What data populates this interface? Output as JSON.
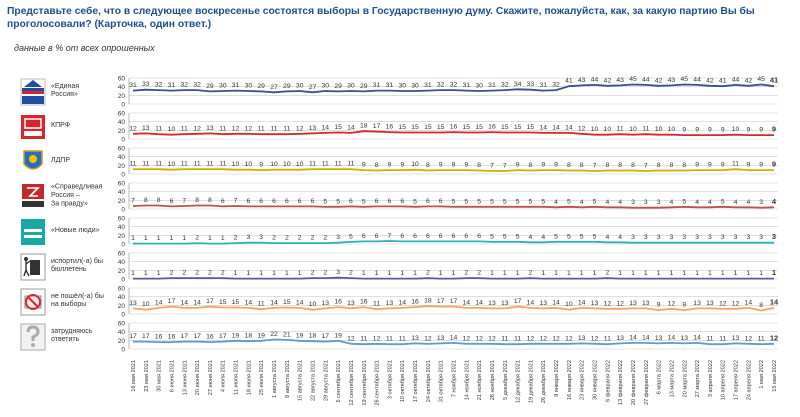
{
  "title": "Представьте себе, что в следующее воскресенье состоятся выборы в Государственную думу. Скажите, пожалуйста, как, за какую партию Вы бы проголосовали? (Карточка, один ответ.)",
  "subtitle": "данные в % от всех опрошенных",
  "chart_data": {
    "type": "line",
    "x": [
      "16 мая 2021",
      "23 мая 2021",
      "30 мая 2021",
      "6 июня 2021",
      "13 июня 2021",
      "20 июня 2021",
      "27 июня 2021",
      "4 июля 2021",
      "11 июля 2021",
      "18 июля 2021",
      "25 июля 2021",
      "1 августа 2021",
      "8 августа 2021",
      "15 августа 2021",
      "22 августа 2021",
      "29 августа 2021",
      "5 сентября 2021",
      "12 сентября 2021",
      "19 сентября 2021",
      "26 сентября 2021",
      "3 октября 2021",
      "10 октября 2021",
      "17 октября 2021",
      "24 октября 2021",
      "31 октября 2021",
      "7 ноября 2021",
      "14 ноября 2021",
      "21 ноября 2021",
      "28 ноября 2021",
      "5 декабря 2021",
      "12 декабря 2021",
      "19 декабря 2021",
      "26 декабря 2021",
      "9 января 2022",
      "16 января 2022",
      "23 января 2022",
      "30 января 2022",
      "6 февраля 2022",
      "13 февраля 2022",
      "20 февраля 2022",
      "27 февраля 2022",
      "6 марта 2022",
      "13 марта 2022",
      "20 марта 2022",
      "27 марта 2022",
      "3 апреля 2022",
      "10 апреля 2022",
      "17 апреля 2022",
      "24 апреля 2022",
      "1 мая 2022",
      "15 мая 2022"
    ],
    "ylim": [
      0,
      60
    ],
    "yticks": [
      0,
      20,
      40,
      60
    ],
    "series": [
      {
        "name": "«Единая Россия»",
        "color": "#3a4f8c",
        "icon": "united-russia-logo",
        "values": [
          31,
          33,
          32,
          31,
          32,
          32,
          29,
          30,
          31,
          30,
          29,
          27,
          29,
          30,
          27,
          30,
          29,
          30,
          29,
          31,
          31,
          30,
          30,
          31,
          32,
          32,
          31,
          30,
          31,
          32,
          34,
          33,
          31,
          32,
          41,
          43,
          44,
          42,
          43,
          45,
          44,
          42,
          43,
          45,
          44,
          42,
          41,
          44,
          42,
          45,
          41
        ]
      },
      {
        "name": "КПРФ",
        "color": "#d9262e",
        "icon": "kprf-logo",
        "values": [
          12,
          13,
          11,
          10,
          11,
          12,
          13,
          11,
          12,
          12,
          11,
          11,
          11,
          12,
          13,
          14,
          15,
          14,
          18,
          17,
          16,
          15,
          15,
          15,
          15,
          16,
          15,
          15,
          16,
          15,
          15,
          15,
          14,
          14,
          14,
          12,
          10,
          10,
          11,
          10,
          11,
          10,
          10,
          9,
          9,
          9,
          9,
          10,
          9,
          9,
          9
        ]
      },
      {
        "name": "ЛДПР",
        "color": "#c8b400",
        "icon": "ldpr-logo",
        "values": [
          11,
          11,
          11,
          10,
          11,
          11,
          11,
          11,
          10,
          10,
          9,
          10,
          10,
          10,
          11,
          11,
          11,
          11,
          9,
          8,
          9,
          9,
          10,
          8,
          9,
          9,
          9,
          8,
          7,
          7,
          9,
          8,
          9,
          9,
          8,
          8,
          7,
          8,
          8,
          8,
          7,
          8,
          8,
          8,
          9,
          9,
          9,
          11,
          9,
          9,
          9
        ]
      },
      {
        "name": "«Справедливая Россия – За правду»",
        "color": "#c0504d",
        "icon": "fair-russia-logo",
        "values": [
          7,
          8,
          8,
          6,
          7,
          8,
          8,
          6,
          7,
          6,
          6,
          6,
          6,
          6,
          6,
          5,
          5,
          6,
          5,
          6,
          6,
          6,
          5,
          6,
          6,
          5,
          5,
          5,
          5,
          5,
          5,
          5,
          5,
          4,
          5,
          4,
          5,
          4,
          4,
          3,
          3,
          3,
          4,
          5,
          4,
          4,
          5,
          4,
          4,
          3,
          4
        ]
      },
      {
        "name": "«Новые люди»",
        "color": "#2bb3b1",
        "icon": "new-people-logo",
        "values": [
          1,
          1,
          1,
          1,
          1,
          2,
          1,
          1,
          2,
          3,
          3,
          2,
          2,
          2,
          2,
          2,
          3,
          5,
          6,
          6,
          7,
          6,
          6,
          6,
          6,
          6,
          6,
          6,
          5,
          5,
          5,
          4,
          4,
          5,
          5,
          5,
          5,
          4,
          4,
          3,
          3,
          3,
          3,
          3,
          3,
          3,
          3,
          3,
          3,
          3,
          3
        ]
      },
      {
        "name": "испортил(-а) бы бюллетень",
        "color": "#6a4fa0",
        "icon": "spoil-ballot-icon",
        "values": [
          1,
          1,
          1,
          2,
          2,
          2,
          2,
          2,
          1,
          1,
          1,
          1,
          1,
          1,
          2,
          2,
          3,
          2,
          1,
          1,
          1,
          1,
          1,
          2,
          1,
          1,
          2,
          2,
          1,
          1,
          1,
          2,
          1,
          1,
          1,
          1,
          1,
          2,
          1,
          1,
          1,
          1,
          1,
          1,
          1,
          1,
          1,
          1,
          1,
          1,
          1
        ]
      },
      {
        "name": "не пошёл(-а) бы на выборы",
        "color": "#f4a460",
        "icon": "no-vote-icon",
        "values": [
          13,
          10,
          14,
          17,
          14,
          14,
          17,
          15,
          15,
          14,
          11,
          14,
          15,
          14,
          10,
          13,
          16,
          13,
          16,
          11,
          13,
          14,
          16,
          18,
          17,
          17,
          14,
          14,
          13,
          13,
          17,
          14,
          13,
          14,
          10,
          14,
          13,
          12,
          12,
          13,
          13,
          9,
          12,
          9,
          13,
          13,
          12,
          12,
          14,
          8,
          14
        ]
      },
      {
        "name": "затрудняюсь ответить",
        "color": "#5b9bd5",
        "icon": "question-icon",
        "values": [
          17,
          17,
          16,
          16,
          17,
          17,
          16,
          17,
          19,
          18,
          19,
          22,
          21,
          19,
          18,
          17,
          19,
          12,
          11,
          12,
          11,
          11,
          13,
          12,
          13,
          14,
          12,
          12,
          12,
          11,
          11,
          12,
          12,
          12,
          12,
          13,
          12,
          11,
          13,
          14,
          14,
          13,
          14,
          13,
          14,
          11,
          11,
          13,
          12,
          11,
          12
        ]
      }
    ]
  }
}
